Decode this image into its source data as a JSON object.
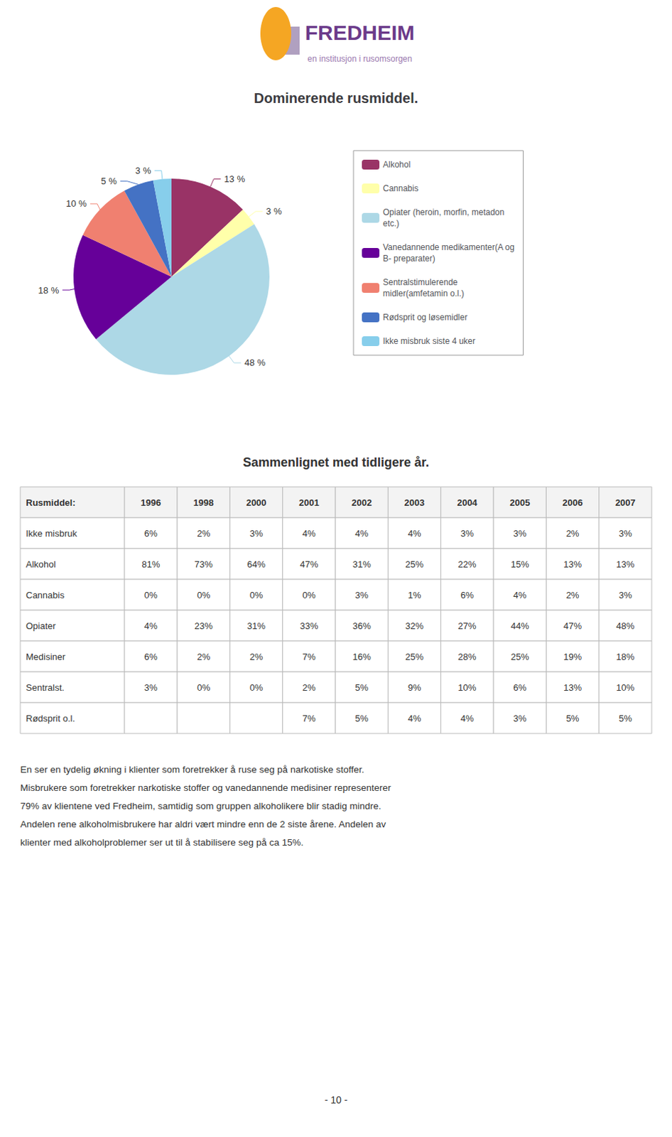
{
  "chart_data": {
    "type": "pie",
    "title": "Dominerende rusmiddel.",
    "categories": [
      "Alkohol",
      "Cannabis",
      "Opiater (heroin, morfin, metadon\netc.)",
      "Vanedannende medikamenter(A og\nB- preparater)",
      "Sentralstimulerende\nmidler(amfetamin o.l.)",
      "Rødsprit og løsemidler",
      "Ikke misbruk siste 4 uker"
    ],
    "values": [
      13,
      3,
      48,
      18,
      10,
      5,
      3
    ],
    "value_labels": [
      "13 %",
      "3 %",
      "48 %",
      "18 %",
      "10 %",
      "5 %",
      "3 %"
    ],
    "colors": [
      "#993366",
      "#FFFFAA",
      "#ADD8E6",
      "#660099",
      "#F08070",
      "#4472C4",
      "#87CEEB"
    ],
    "data_labels": true,
    "legend": "right"
  },
  "logo": {
    "name": "FREDHEIM",
    "tagline": "en institusjon i rusomsorgen"
  },
  "table": {
    "title": "Sammenlignet med tidligere år.",
    "columns": [
      "Rusmiddel:",
      "1996",
      "1998",
      "2000",
      "2001",
      "2002",
      "2003",
      "2004",
      "2005",
      "2006",
      "2007"
    ],
    "rows": [
      [
        "Ikke misbruk",
        "6%",
        "2%",
        "3%",
        "4%",
        "4%",
        "4%",
        "3%",
        "3%",
        "2%",
        "3%"
      ],
      [
        "Alkohol",
        "81%",
        "73%",
        "64%",
        "47%",
        "31%",
        "25%",
        "22%",
        "15%",
        "13%",
        "13%"
      ],
      [
        "Cannabis",
        "0%",
        "0%",
        "0%",
        "0%",
        "3%",
        "1%",
        "6%",
        "4%",
        "2%",
        "3%"
      ],
      [
        "Opiater",
        "4%",
        "23%",
        "31%",
        "33%",
        "36%",
        "32%",
        "27%",
        "44%",
        "47%",
        "48%"
      ],
      [
        "Medisiner",
        "6%",
        "2%",
        "2%",
        "7%",
        "16%",
        "25%",
        "28%",
        "25%",
        "19%",
        "18%"
      ],
      [
        "Sentralst.",
        "3%",
        "0%",
        "0%",
        "2%",
        "5%",
        "9%",
        "10%",
        "6%",
        "13%",
        "10%"
      ],
      [
        "Rødsprit o.l.",
        null,
        null,
        null,
        "7%",
        "5%",
        "4%",
        "4%",
        "3%",
        "5%",
        "5%"
      ]
    ]
  },
  "body_text": "En ser en tydelig økning i klienter som foretrekker å ruse seg på narkotiske stoffer.\nMisbrukere som foretrekker narkotiske stoffer og vanedannende medisiner representerer\n79% av klientene ved Fredheim, samtidig som gruppen alkoholikere blir stadig mindre.\nAndelen rene alkoholmisbrukere har aldri vært mindre enn de 2 siste årene. Andelen av\nklienter med alkoholproblemer ser ut til å stabilisere seg på ca 15%.",
  "page_number": "- 10 -"
}
